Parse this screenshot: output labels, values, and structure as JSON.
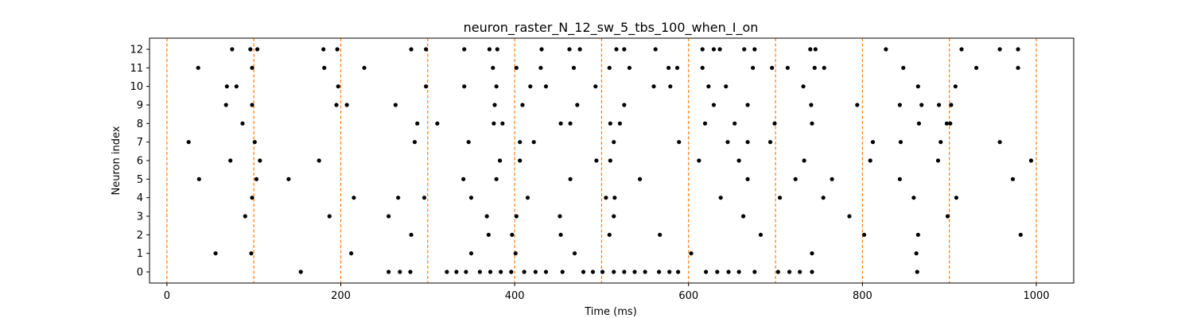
{
  "chart_data": {
    "type": "scatter",
    "title": "neuron_raster_N_12_sw_5_tbs_100_when_I_on",
    "xlabel": "Time (ms)",
    "ylabel": "Neuron index",
    "xlim": [
      -20,
      1043
    ],
    "ylim": [
      -0.6,
      12.6
    ],
    "xticks": [
      0,
      200,
      400,
      600,
      800,
      1000
    ],
    "yticks": [
      0,
      1,
      2,
      3,
      4,
      5,
      6,
      7,
      8,
      9,
      10,
      11,
      12
    ],
    "grid": false,
    "marker_color": "#000000",
    "vline_color": "#ff7f0e",
    "vlines": [
      0,
      100,
      200,
      300,
      400,
      500,
      600,
      700,
      800,
      900,
      1000
    ],
    "spikes": [
      {
        "neuron": 0,
        "times": [
          154,
          255,
          268,
          280,
          322,
          333,
          344,
          360,
          372,
          384,
          396,
          411,
          424,
          436,
          455,
          479,
          490,
          501,
          514,
          526,
          538,
          550,
          566,
          578,
          588,
          620,
          633,
          646,
          658,
          676,
          703,
          716,
          728,
          742,
          863
        ]
      },
      {
        "neuron": 1,
        "times": [
          56,
          97,
          212,
          350,
          401,
          469,
          603,
          742,
          862
        ]
      },
      {
        "neuron": 2,
        "times": [
          281,
          370,
          397,
          453,
          509,
          567,
          683,
          802,
          864,
          982
        ]
      },
      {
        "neuron": 3,
        "times": [
          90,
          187,
          255,
          368,
          402,
          452,
          514,
          663,
          785,
          898
        ]
      },
      {
        "neuron": 4,
        "times": [
          98,
          215,
          266,
          296,
          350,
          415,
          505,
          515,
          637,
          705,
          755,
          859,
          908
        ]
      },
      {
        "neuron": 5,
        "times": [
          37,
          103,
          140,
          341,
          379,
          464,
          544,
          668,
          723,
          765,
          843,
          973
        ]
      },
      {
        "neuron": 6,
        "times": [
          73,
          107,
          175,
          383,
          406,
          494,
          510,
          612,
          658,
          733,
          809,
          887,
          994
        ]
      },
      {
        "neuron": 7,
        "times": [
          25,
          101,
          285,
          347,
          406,
          422,
          514,
          589,
          645,
          668,
          694,
          812,
          844,
          890,
          958
        ]
      },
      {
        "neuron": 8,
        "times": [
          87,
          288,
          311,
          376,
          386,
          453,
          464,
          510,
          521,
          619,
          653,
          699,
          742,
          865,
          897,
          901
        ]
      },
      {
        "neuron": 9,
        "times": [
          68,
          98,
          195,
          207,
          263,
          377,
          409,
          472,
          526,
          629,
          668,
          741,
          794,
          843,
          868,
          888,
          902
        ]
      },
      {
        "neuron": 10,
        "times": [
          69,
          80,
          197,
          298,
          342,
          379,
          418,
          436,
          493,
          560,
          579,
          623,
          643,
          732,
          864,
          907
        ]
      },
      {
        "neuron": 11,
        "times": [
          36,
          98,
          181,
          227,
          375,
          402,
          430,
          468,
          509,
          532,
          577,
          587,
          616,
          674,
          696,
          714,
          745,
          756,
          847,
          931,
          979
        ]
      },
      {
        "neuron": 12,
        "times": [
          75,
          96,
          104,
          180,
          196,
          281,
          298,
          342,
          371,
          380,
          431,
          463,
          475,
          517,
          526,
          562,
          616,
          629,
          636,
          664,
          676,
          740,
          746,
          827,
          914,
          958,
          979
        ]
      }
    ]
  }
}
